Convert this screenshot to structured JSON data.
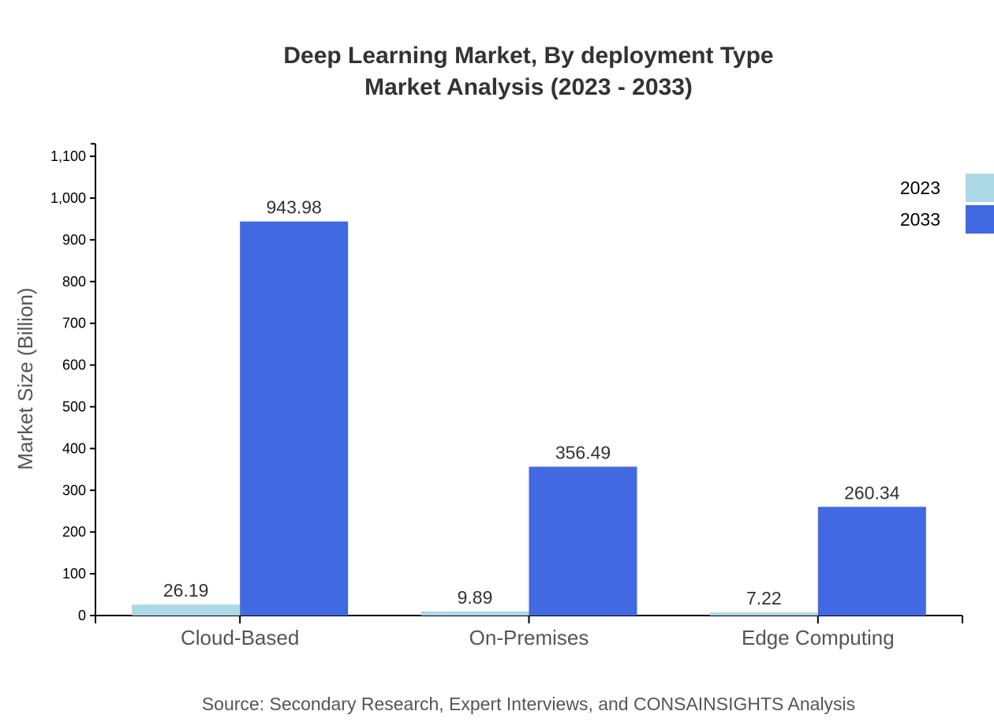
{
  "chart_data": {
    "type": "bar",
    "title": "Deep Learning Market, By deployment Type",
    "subtitle": "Market Analysis (2023 - 2033)",
    "xlabel": "",
    "ylabel": "Market Size (Billion)",
    "categories": [
      "Cloud-Based",
      "On-Premises",
      "Edge Computing"
    ],
    "series": [
      {
        "name": "2023",
        "color": "#add8e6",
        "values": [
          26.19,
          9.89,
          7.22
        ]
      },
      {
        "name": "2033",
        "color": "#4169e1",
        "values": [
          943.98,
          356.49,
          260.34
        ]
      }
    ],
    "ylim": [
      0,
      1130
    ],
    "yticks": [
      0,
      100,
      200,
      300,
      400,
      500,
      600,
      700,
      800,
      900,
      1000,
      1100
    ],
    "ytick_labels": [
      "0",
      "100",
      "200",
      "300",
      "400",
      "500",
      "600",
      "700",
      "800",
      "900",
      "1,000",
      "1,100"
    ],
    "grid": false,
    "legend": "top-right",
    "source": "Source: Secondary Research, Expert Interviews, and CONSAINSIGHTS Analysis"
  }
}
